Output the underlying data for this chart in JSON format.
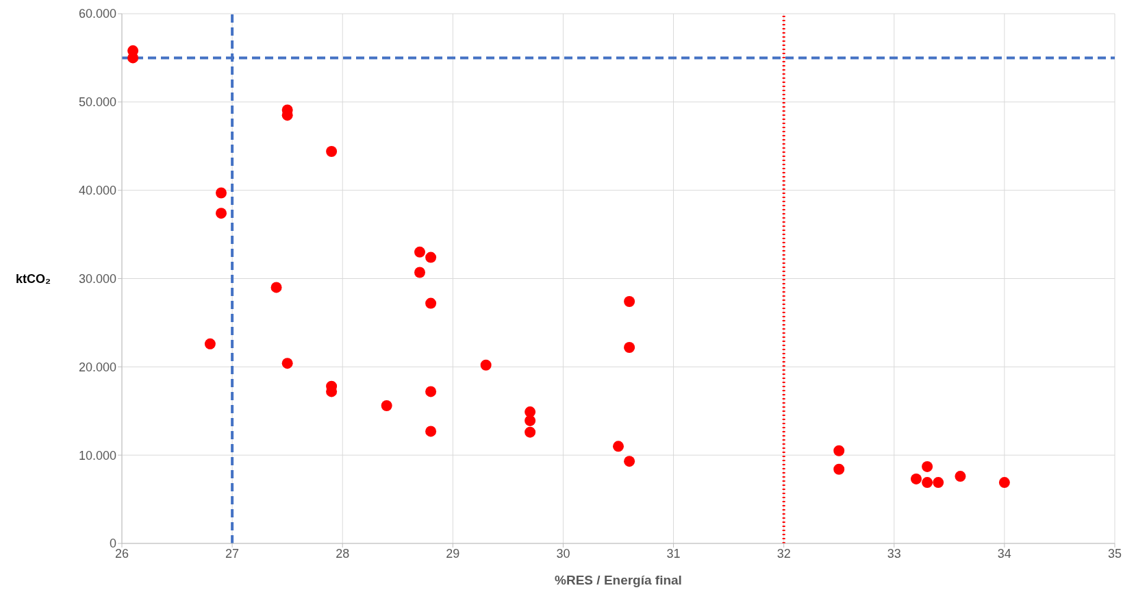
{
  "chart_data": {
    "type": "scatter",
    "xlabel": "%RES / Energía final",
    "ylabel": "ktCO₂",
    "xlim": [
      26,
      35
    ],
    "xticks": [
      26,
      27,
      28,
      29,
      30,
      31,
      32,
      33,
      34,
      35
    ],
    "ylim": [
      0,
      60000
    ],
    "yticks": [
      {
        "value": 0,
        "label": "0"
      },
      {
        "value": 10000,
        "label": "10.000"
      },
      {
        "value": 20000,
        "label": "20.000"
      },
      {
        "value": 30000,
        "label": "30.000"
      },
      {
        "value": 40000,
        "label": "40.000"
      },
      {
        "value": 50000,
        "label": "50.000"
      },
      {
        "value": 60000,
        "label": "60.000"
      }
    ],
    "grid": true,
    "marker": "circle",
    "series": [
      {
        "color": "#ff0000",
        "x": [
          26.1,
          26.1,
          26.9,
          26.9,
          26.8,
          27.4,
          27.5,
          27.5,
          27.5,
          27.9,
          27.9,
          27.9,
          28.4,
          28.7,
          28.7,
          28.8,
          28.8,
          28.8,
          28.8,
          29.3,
          29.7,
          29.7,
          29.7,
          30.5,
          30.6,
          30.6,
          30.6,
          32.5,
          32.5,
          33.2,
          33.3,
          33.3,
          33.4,
          33.6,
          34.0
        ],
        "values": [
          55800,
          55000,
          39700,
          37400,
          22600,
          29000,
          49100,
          48500,
          20400,
          44400,
          17800,
          17200,
          15600,
          33000,
          30700,
          32400,
          27200,
          17200,
          12700,
          20200,
          14900,
          13900,
          12600,
          11000,
          27400,
          22200,
          9300,
          10500,
          8400,
          7300,
          8700,
          6900,
          6900,
          7600,
          6900
        ]
      }
    ],
    "ref_lines": [
      {
        "axis": "y",
        "value": 55000,
        "color": "#4472c4",
        "line_style": "dashed"
      },
      {
        "axis": "x",
        "value": 27,
        "color": "#4472c4",
        "line_style": "dashed"
      },
      {
        "axis": "x",
        "value": 32,
        "color": "#ff0000",
        "line_style": "dotted"
      }
    ]
  }
}
